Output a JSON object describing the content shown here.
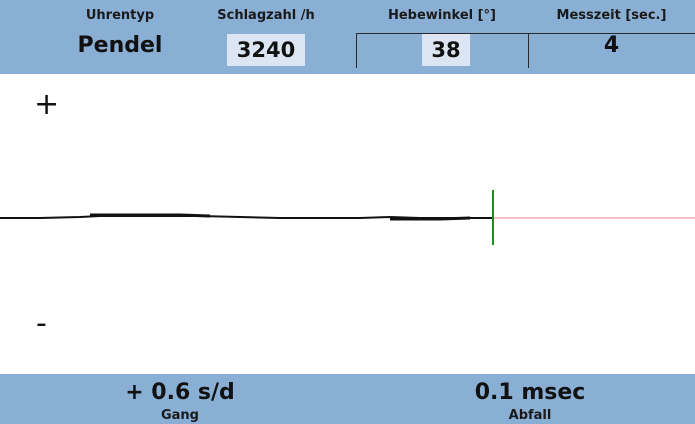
{
  "header": {
    "uhrentyp": {
      "label": "Uhrentyp",
      "value": "Pendel"
    },
    "schlagzahl": {
      "label": "Schlagzahl /h",
      "value": "3240"
    },
    "hebewinkel": {
      "label": "Hebewinkel [°]",
      "value": "38"
    },
    "messzeit": {
      "label": "Messzeit [sec.]",
      "value": "4"
    }
  },
  "trace": {
    "plus_label": "+",
    "minus_label": "-",
    "trace_color": "#111111",
    "marker_color": "#1a8f1a",
    "reference_color": "#f08080"
  },
  "footer": {
    "gang": {
      "value": "+ 0.6 s/d",
      "label": "Gang"
    },
    "abfall": {
      "value": "0.1 msec",
      "label": "Abfall"
    }
  },
  "colors": {
    "panel": "#8aafd4",
    "value_box": "#dbe6f2"
  }
}
